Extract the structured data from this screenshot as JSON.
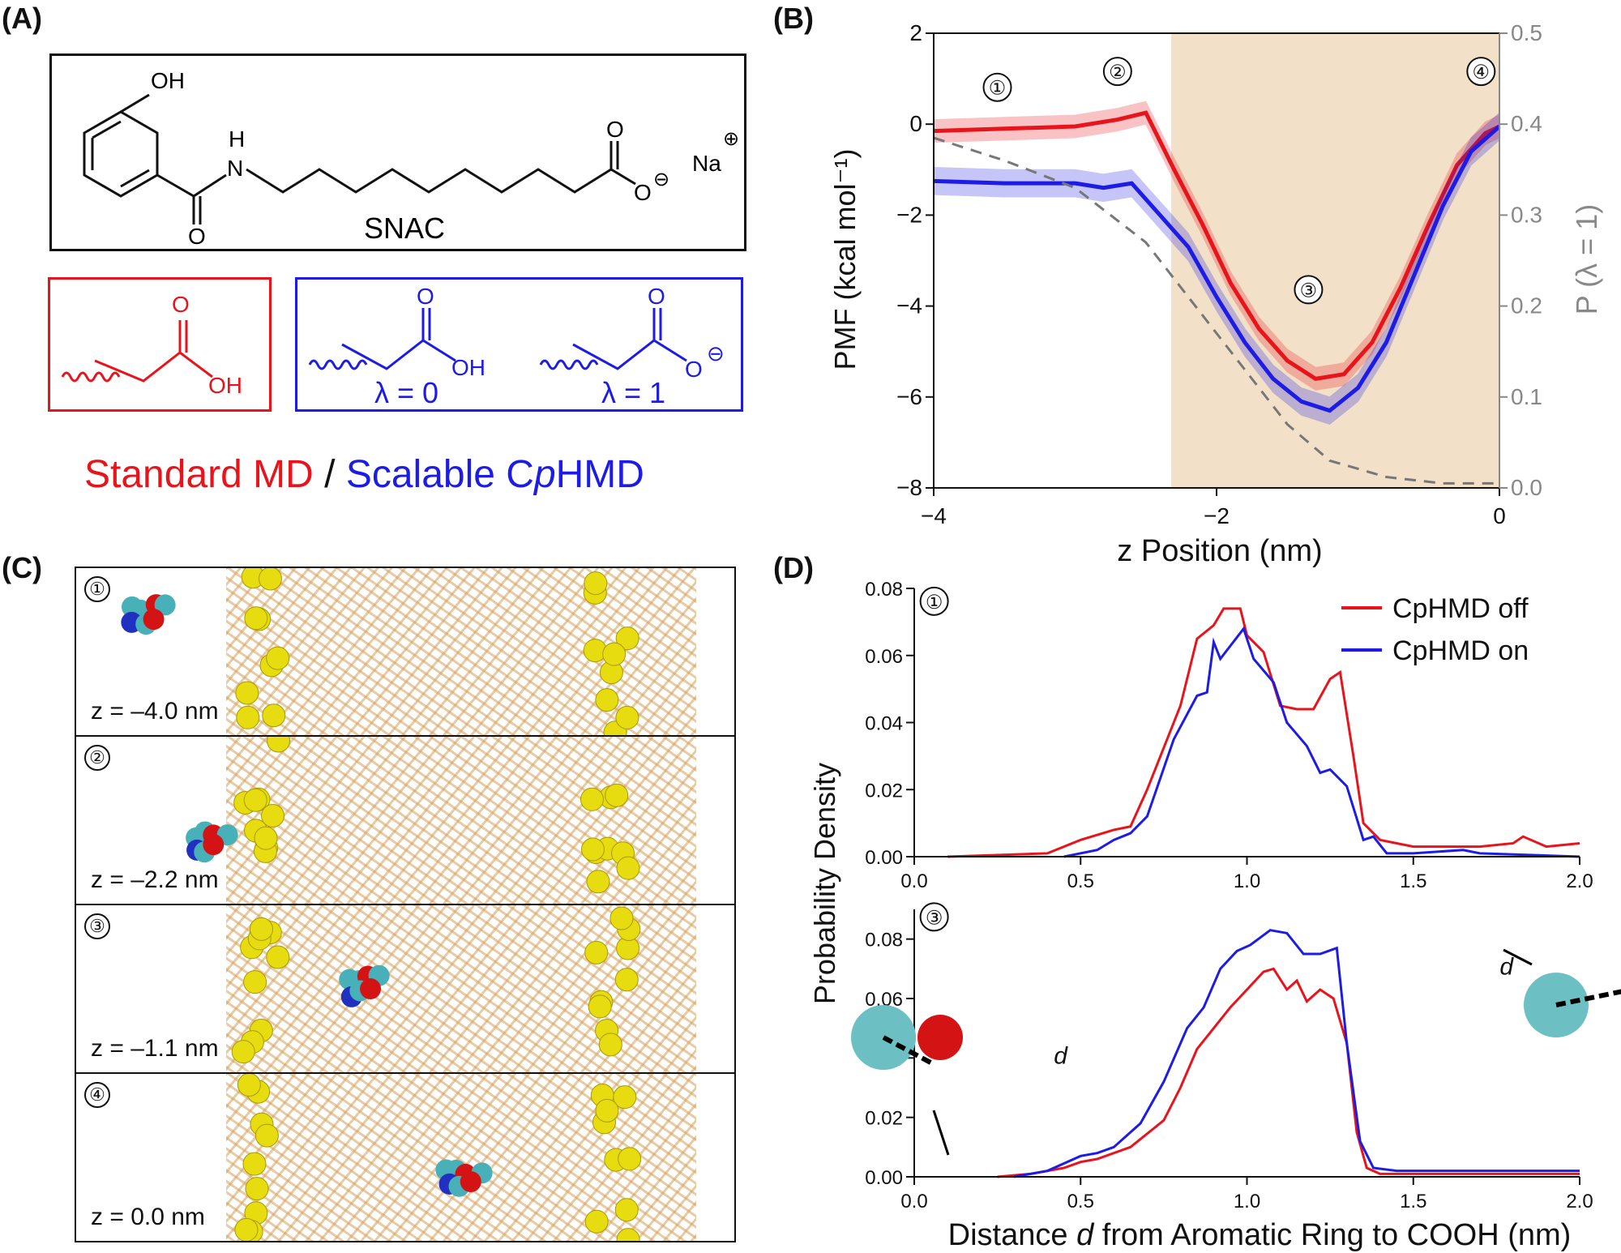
{
  "panels": {
    "a": "(A)",
    "b": "(B)",
    "c": "(C)",
    "d": "(D)"
  },
  "panel_a": {
    "molecule_name": "SNAC",
    "atoms": {
      "oh": "OH",
      "h": "H",
      "n": "N",
      "o": "O",
      "o_minus": "O",
      "charge_minus": "⊖",
      "na": "Na",
      "charge_plus": "⊕"
    },
    "standard_group": {
      "o": "O",
      "oh": "OH"
    },
    "cphmd_groups": [
      {
        "lambda": "λ = 0",
        "o": "O",
        "oh": "OH"
      },
      {
        "lambda": "λ = 1",
        "o": "O",
        "o_minus": "O",
        "charge": "⊖"
      }
    ],
    "legend": {
      "standard": "Standard MD",
      "separator": " / ",
      "scalable_pre": "Scalable C",
      "scalable_italic": "p",
      "scalable_post": "HMD"
    },
    "colors": {
      "standard": "#e8141c",
      "cphmd": "#1c1ce6"
    }
  },
  "panel_c": {
    "frames": [
      {
        "marker": "①",
        "label": "z = –4.0 nm"
      },
      {
        "marker": "②",
        "label": "z = –2.2 nm"
      },
      {
        "marker": "③",
        "label": "z = –1.1 nm"
      },
      {
        "marker": "④",
        "label": "z = 0.0 nm"
      }
    ]
  },
  "chart_data": [
    {
      "type": "line",
      "panel": "B",
      "xlabel": "z Position (nm)",
      "ylabel": "PMF (kcal mol⁻¹)",
      "y2label": "P (λ = 1)",
      "xlim": [
        -4,
        0
      ],
      "ylim": [
        -8,
        2
      ],
      "y2lim": [
        0,
        0.5
      ],
      "xticks": [
        "−4",
        "−2",
        "0"
      ],
      "yticks": [
        "−8",
        "−6",
        "−4",
        "−2",
        "0",
        "2"
      ],
      "y2ticks": [
        "0.0",
        "0.1",
        "0.2",
        "0.3",
        "0.4",
        "0.5"
      ],
      "annotations": [
        {
          "text": "①",
          "x": -3.55,
          "y": 0.65
        },
        {
          "text": "②",
          "x": -2.7,
          "y": 1.0
        },
        {
          "text": "③",
          "x": -1.35,
          "y": -3.8
        },
        {
          "text": "④",
          "x": -0.13,
          "y": 1.0
        }
      ],
      "series": [
        {
          "color": "#e8141c",
          "axis": "left",
          "band": 0.25,
          "x": [
            -4,
            -3.5,
            -3,
            -2.7,
            -2.5,
            -2.3,
            -2.1,
            -1.9,
            -1.7,
            -1.5,
            -1.3,
            -1.1,
            -0.9,
            -0.7,
            -0.5,
            -0.3,
            -0.1,
            0
          ],
          "y": [
            -0.15,
            -0.1,
            -0.05,
            0.1,
            0.25,
            -1.0,
            -2.2,
            -3.5,
            -4.5,
            -5.2,
            -5.6,
            -5.5,
            -4.8,
            -3.6,
            -2.2,
            -0.9,
            -0.2,
            -0.05
          ]
        },
        {
          "color": "#1c1ce6",
          "axis": "left",
          "band": 0.3,
          "x": [
            -4,
            -3.5,
            -3,
            -2.8,
            -2.6,
            -2.4,
            -2.2,
            -2.0,
            -1.8,
            -1.6,
            -1.4,
            -1.2,
            -1.0,
            -0.8,
            -0.6,
            -0.4,
            -0.2,
            0
          ],
          "y": [
            -1.25,
            -1.3,
            -1.3,
            -1.4,
            -1.3,
            -2.0,
            -2.7,
            -3.8,
            -4.8,
            -5.6,
            -6.1,
            -6.3,
            -5.8,
            -4.8,
            -3.3,
            -1.8,
            -0.6,
            -0.05
          ]
        },
        {
          "color": "#777777",
          "axis": "right",
          "dashed": true,
          "x": [
            -4,
            -3.5,
            -3,
            -2.5,
            -2,
            -1.5,
            -1.2,
            -0.8,
            -0.4,
            0
          ],
          "y": [
            0.385,
            0.36,
            0.33,
            0.27,
            0.17,
            0.07,
            0.03,
            0.012,
            0.005,
            0.005
          ]
        }
      ]
    },
    {
      "type": "line",
      "panel": "D-top",
      "ylabel": "Probability Density",
      "xlim": [
        0,
        2
      ],
      "ylim": [
        0,
        0.08
      ],
      "xticks": [
        "0.0",
        "0.5",
        "1.0",
        "1.5",
        "2.0"
      ],
      "yticks": [
        "0.00",
        "0.02",
        "0.04",
        "0.06",
        "0.08"
      ],
      "annotations": [
        {
          "text": "①",
          "x": 0.06,
          "y": 0.074
        }
      ],
      "legend": {
        "position": "top-right"
      },
      "series": [
        {
          "name": "CpHMD off",
          "color": "#e8141c",
          "x": [
            0.1,
            0.4,
            0.5,
            0.6,
            0.65,
            0.7,
            0.8,
            0.85,
            0.9,
            0.93,
            0.98,
            1.0,
            1.05,
            1.1,
            1.15,
            1.2,
            1.25,
            1.28,
            1.32,
            1.35,
            1.4,
            1.5,
            1.6,
            1.7,
            1.8,
            1.83,
            1.9,
            2.0
          ],
          "y": [
            0,
            0.001,
            0.005,
            0.008,
            0.009,
            0.02,
            0.045,
            0.065,
            0.069,
            0.074,
            0.074,
            0.066,
            0.061,
            0.045,
            0.044,
            0.044,
            0.053,
            0.055,
            0.03,
            0.01,
            0.005,
            0.003,
            0.003,
            0.003,
            0.004,
            0.006,
            0.003,
            0.004
          ]
        },
        {
          "name": "CpHMD on",
          "color": "#1c1ce6",
          "x": [
            0.45,
            0.55,
            0.6,
            0.65,
            0.7,
            0.78,
            0.85,
            0.88,
            0.9,
            0.92,
            0.99,
            1.02,
            1.08,
            1.12,
            1.18,
            1.22,
            1.25,
            1.3,
            1.35,
            1.38,
            1.42,
            1.5,
            1.65,
            1.7,
            2.0
          ],
          "y": [
            0,
            0.002,
            0.005,
            0.007,
            0.012,
            0.035,
            0.048,
            0.049,
            0.064,
            0.059,
            0.068,
            0.059,
            0.052,
            0.04,
            0.033,
            0.025,
            0.026,
            0.021,
            0.005,
            0.006,
            0.001,
            0.001,
            0.002,
            0.001,
            0
          ]
        }
      ]
    },
    {
      "type": "line",
      "panel": "D-bottom",
      "xlabel": "Distance d from Aromatic Ring to COOH (nm)",
      "xlabel_parts": {
        "pre": "Distance ",
        "italic": "d",
        "post": " from Aromatic Ring to COOH (nm)"
      },
      "xlim": [
        0,
        2
      ],
      "ylim": [
        0,
        0.09
      ],
      "xticks": [
        "0.0",
        "0.5",
        "1.0",
        "1.5",
        "2.0"
      ],
      "yticks": [
        "0.00",
        "0.02",
        "0.04",
        "0.06",
        "0.08"
      ],
      "annotations": [
        {
          "text": "③",
          "x": 0.06,
          "y": 0.085
        },
        {
          "text": "d",
          "x": 0.44,
          "y": 0.038
        },
        {
          "text": "d",
          "x": 1.78,
          "y": 0.068
        }
      ],
      "series": [
        {
          "name": "CpHMD off",
          "color": "#e8141c",
          "x": [
            0.25,
            0.35,
            0.45,
            0.5,
            0.55,
            0.65,
            0.75,
            0.8,
            0.85,
            0.95,
            1.05,
            1.08,
            1.12,
            1.15,
            1.18,
            1.22,
            1.26,
            1.3,
            1.33,
            1.36,
            1.4,
            2.0
          ],
          "y": [
            0,
            0.001,
            0.003,
            0.005,
            0.006,
            0.01,
            0.019,
            0.03,
            0.043,
            0.057,
            0.069,
            0.07,
            0.063,
            0.066,
            0.059,
            0.063,
            0.06,
            0.045,
            0.015,
            0.003,
            0.001,
            0.001
          ]
        },
        {
          "name": "CpHMD on",
          "color": "#1c1ce6",
          "x": [
            0.3,
            0.4,
            0.5,
            0.55,
            0.6,
            0.68,
            0.75,
            0.82,
            0.87,
            0.92,
            0.97,
            1.01,
            1.07,
            1.12,
            1.17,
            1.22,
            1.27,
            1.3,
            1.34,
            1.38,
            1.45,
            2.0
          ],
          "y": [
            0,
            0.002,
            0.007,
            0.008,
            0.01,
            0.018,
            0.032,
            0.05,
            0.057,
            0.07,
            0.076,
            0.078,
            0.083,
            0.082,
            0.075,
            0.075,
            0.077,
            0.045,
            0.012,
            0.003,
            0.002,
            0.002
          ]
        }
      ]
    }
  ]
}
